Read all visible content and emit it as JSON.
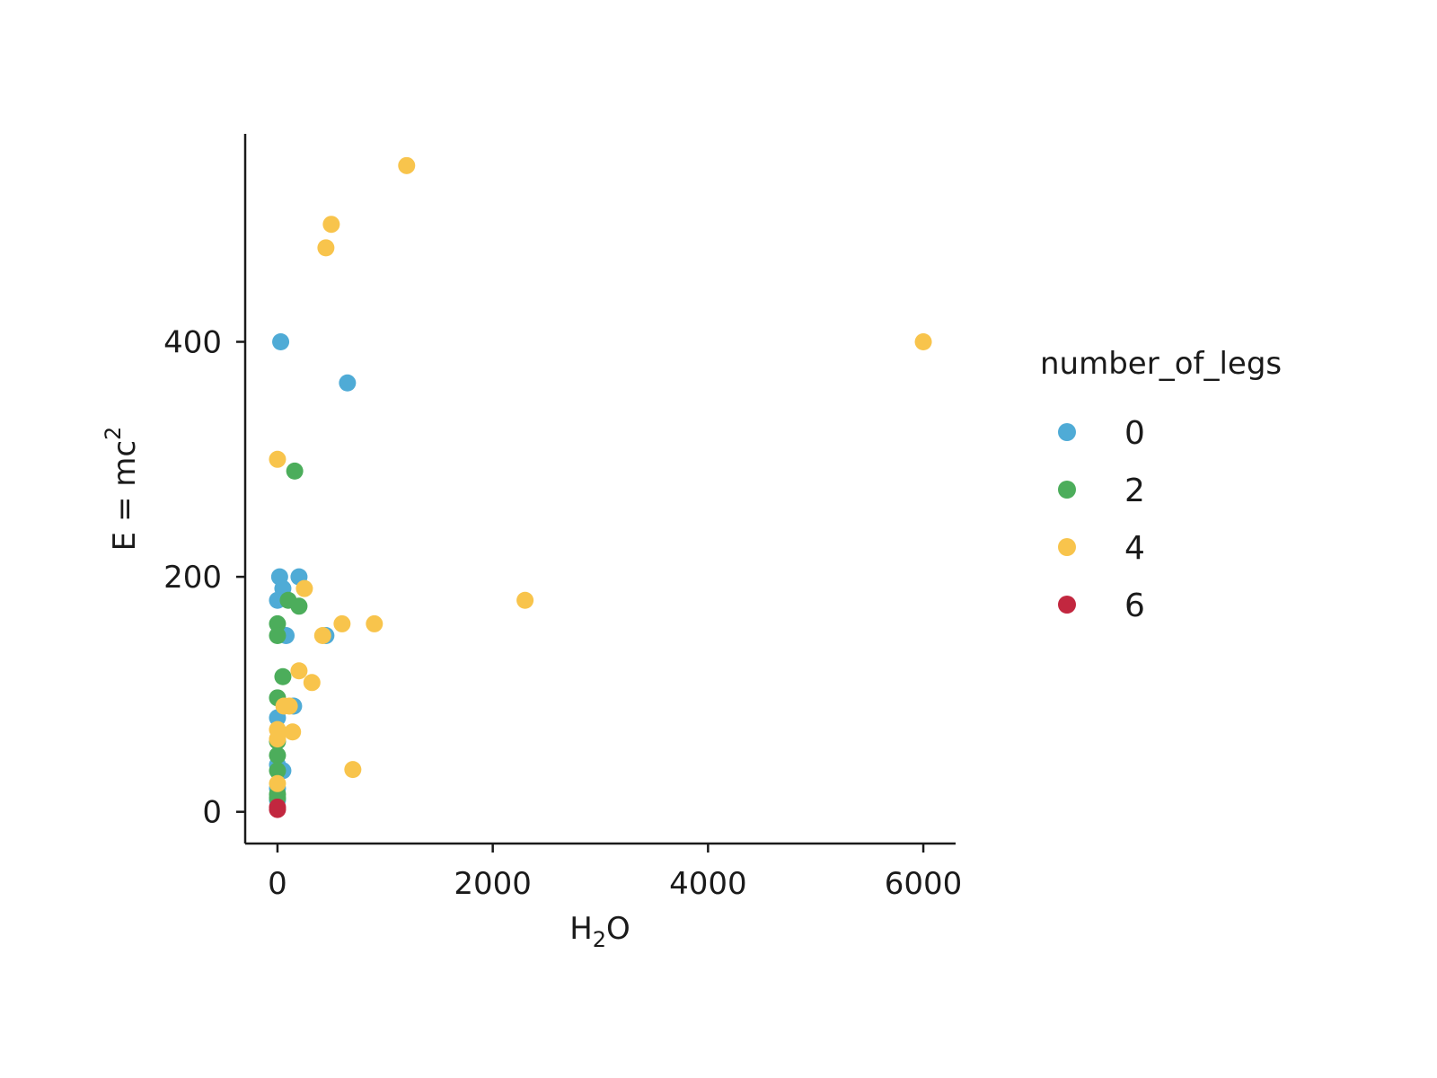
{
  "chart_data": {
    "type": "scatter",
    "title": "",
    "xlabel": {
      "base": "H",
      "sub": "2",
      "rest": "O"
    },
    "ylabel": {
      "base": "E = mc",
      "sup": "2"
    },
    "xlim": [
      -300,
      6300
    ],
    "ylim": [
      -27,
      577
    ],
    "xticks": [
      0,
      2000,
      4000,
      6000
    ],
    "yticks": [
      0,
      200,
      400
    ],
    "grid": false,
    "legend": {
      "title": "number_of_legs",
      "position": "right",
      "entries": [
        {
          "label": "0",
          "color": "#4fabd6"
        },
        {
          "label": "2",
          "color": "#4cad5b"
        },
        {
          "label": "4",
          "color": "#f8c44c"
        },
        {
          "label": "6",
          "color": "#c2273f"
        }
      ]
    },
    "series": [
      {
        "name": "0",
        "color": "#4fabd6",
        "points": [
          [
            30,
            400
          ],
          [
            650,
            365
          ],
          [
            20,
            200
          ],
          [
            200,
            200
          ],
          [
            50,
            190
          ],
          [
            0,
            180
          ],
          [
            80,
            150
          ],
          [
            450,
            150
          ],
          [
            150,
            90
          ],
          [
            0,
            80
          ],
          [
            50,
            35
          ],
          [
            0,
            40
          ],
          [
            0,
            20
          ],
          [
            0,
            10
          ]
        ]
      },
      {
        "name": "2",
        "color": "#4cad5b",
        "points": [
          [
            160,
            290
          ],
          [
            100,
            180
          ],
          [
            200,
            175
          ],
          [
            0,
            160
          ],
          [
            0,
            150
          ],
          [
            50,
            115
          ],
          [
            0,
            97
          ],
          [
            0,
            60
          ],
          [
            0,
            48
          ],
          [
            0,
            35
          ],
          [
            0,
            15
          ],
          [
            0,
            12
          ]
        ]
      },
      {
        "name": "4",
        "color": "#f8c44c",
        "points": [
          [
            1200,
            550
          ],
          [
            500,
            500
          ],
          [
            450,
            480
          ],
          [
            6000,
            400
          ],
          [
            0,
            300
          ],
          [
            250,
            190
          ],
          [
            2300,
            180
          ],
          [
            600,
            160
          ],
          [
            900,
            160
          ],
          [
            420,
            150
          ],
          [
            200,
            120
          ],
          [
            320,
            110
          ],
          [
            60,
            90
          ],
          [
            110,
            90
          ],
          [
            140,
            68
          ],
          [
            0,
            70
          ],
          [
            0,
            62
          ],
          [
            700,
            36
          ],
          [
            0,
            24
          ]
        ]
      },
      {
        "name": "6",
        "color": "#c2273f",
        "points": [
          [
            0,
            2
          ],
          [
            0,
            4
          ]
        ]
      }
    ]
  }
}
